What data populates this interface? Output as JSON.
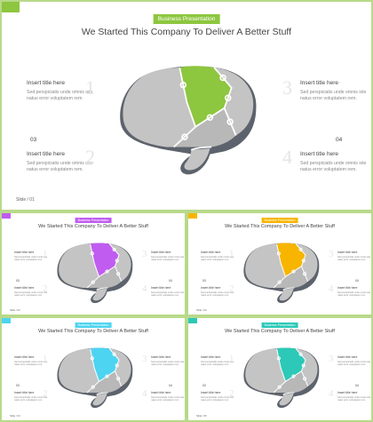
{
  "slides": [
    {
      "tag": "Business Presentation",
      "title": "We Started This Company To Deliver A Better Stuff",
      "accent": "#8dc63f",
      "blocks": [
        {
          "title": "Insert title here",
          "desc": "Sed perspiciatis unde omnis iste natus error voluptatem rem."
        },
        {
          "title": "Insert title here",
          "desc": "Sed perspiciatis unde omnis iste natus error voluptatem rem."
        },
        {
          "title": "Insert title here",
          "desc": "Sed perspiciatis unde omnis iste natus error voluptatem rem."
        },
        {
          "title": "Insert title here",
          "desc": "Sed perspiciatis unde omnis iste natus error voluptatem rem."
        }
      ],
      "numbers": [
        "03",
        "04"
      ],
      "ghost_numbers": [
        "1",
        "3",
        "2",
        "4"
      ],
      "slide_number": "Slide / 01"
    },
    {
      "tag": "Business Presentation",
      "title": "We Started This Company To Deliver A Better Stuff",
      "accent": "#c05cf0",
      "blocks": [
        {
          "title": "Insert title here",
          "desc": "Sed perspiciatis unde omnis iste natus error voluptatem rem."
        },
        {
          "title": "Insert title here",
          "desc": "Sed perspiciatis unde omnis iste natus error voluptatem rem."
        },
        {
          "title": "Insert title here",
          "desc": "Sed perspiciatis unde omnis iste natus error voluptatem rem."
        },
        {
          "title": "Insert title here",
          "desc": "Sed perspiciatis unde omnis iste natus error voluptatem rem."
        }
      ],
      "numbers": [
        "03",
        "04"
      ],
      "ghost_numbers": [
        "1",
        "3",
        "2",
        "4"
      ],
      "slide_number": "Slide / 02"
    },
    {
      "tag": "Business Presentation",
      "title": "We Started This Company To Deliver A Better Stuff",
      "accent": "#f7b500",
      "blocks": [
        {
          "title": "Insert title here",
          "desc": "Sed perspiciatis unde omnis iste natus error voluptatem rem."
        },
        {
          "title": "Insert title here",
          "desc": "Sed perspiciatis unde omnis iste natus error voluptatem rem."
        },
        {
          "title": "Insert title here",
          "desc": "Sed perspiciatis unde omnis iste natus error voluptatem rem."
        },
        {
          "title": "Insert title here",
          "desc": "Sed perspiciatis unde omnis iste natus error voluptatem rem."
        }
      ],
      "numbers": [
        "03",
        "04"
      ],
      "ghost_numbers": [
        "1",
        "3",
        "2",
        "4"
      ],
      "slide_number": "Slide / 03"
    },
    {
      "tag": "Business Presentation",
      "title": "We Started This Company To Deliver A Better Stuff",
      "accent": "#4dd4f0",
      "blocks": [
        {
          "title": "Insert title here",
          "desc": "Sed perspiciatis unde omnis iste natus error voluptatem rem."
        },
        {
          "title": "Insert title here",
          "desc": "Sed perspiciatis unde omnis iste natus error voluptatem rem."
        },
        {
          "title": "Insert title here",
          "desc": "Sed perspiciatis unde omnis iste natus error voluptatem rem."
        },
        {
          "title": "Insert title here",
          "desc": "Sed perspiciatis unde omnis iste natus error voluptatem rem."
        }
      ],
      "numbers": [
        "03",
        "04"
      ],
      "ghost_numbers": [
        "1",
        "3",
        "2",
        "4"
      ],
      "slide_number": "Slide / 04"
    },
    {
      "tag": "Business Presentation",
      "title": "We Started This Company To Deliver A Better Stuff",
      "accent": "#2cc9b8",
      "blocks": [
        {
          "title": "Insert title here",
          "desc": "Sed perspiciatis unde omnis iste natus error voluptatem rem."
        },
        {
          "title": "Insert title here",
          "desc": "Sed perspiciatis unde omnis iste natus error voluptatem rem."
        },
        {
          "title": "Insert title here",
          "desc": "Sed perspiciatis unde omnis iste natus error voluptatem rem."
        },
        {
          "title": "Insert title here",
          "desc": "Sed perspiciatis unde omnis iste natus error voluptatem rem."
        }
      ],
      "numbers": [
        "03",
        "04"
      ],
      "ghost_numbers": [
        "1",
        "3",
        "2",
        "4"
      ],
      "slide_number": "Slide / 05"
    }
  ]
}
